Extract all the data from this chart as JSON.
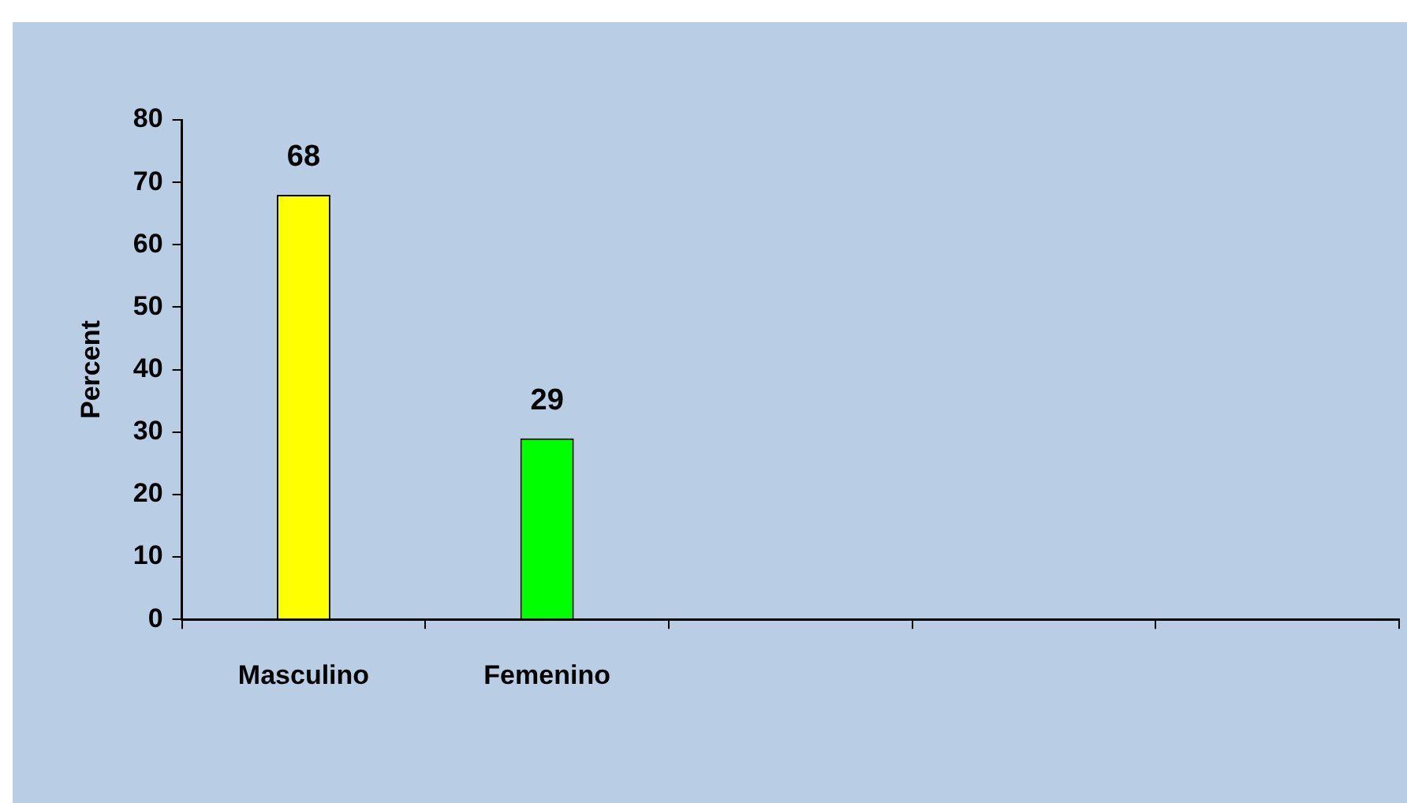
{
  "chart_data": {
    "type": "bar",
    "ylabel": "Percent",
    "categories": [
      "Masculino",
      "Femenino",
      null,
      null,
      null
    ],
    "values": [
      68,
      29,
      null,
      null,
      null
    ],
    "colors": [
      "#ffff00",
      "#00ff00",
      "#ffff00",
      "#ffff00",
      "#ffff00"
    ],
    "ylim": [
      0,
      80
    ],
    "yticks": [
      0,
      10,
      20,
      30,
      40,
      50,
      60,
      70,
      80
    ],
    "data_labels": true,
    "grid": false,
    "legend": false
  }
}
